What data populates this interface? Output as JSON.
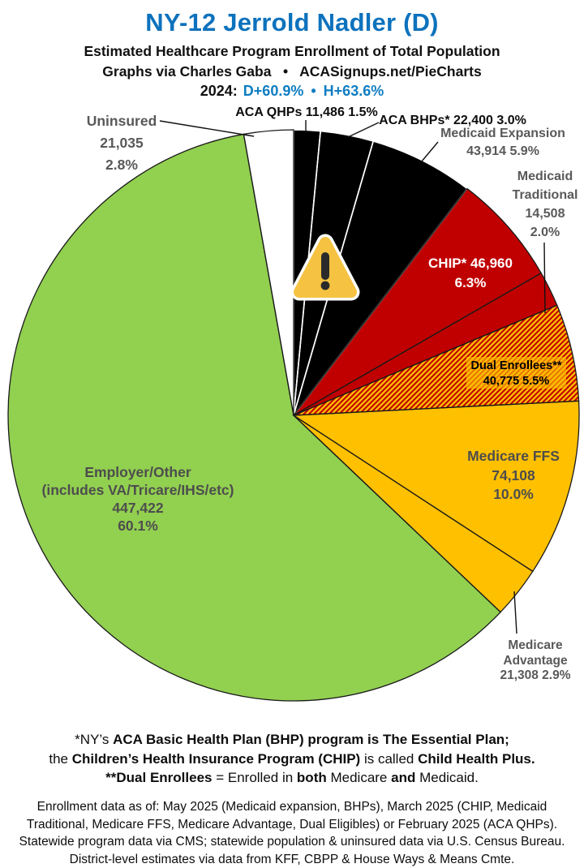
{
  "header": {
    "title": "NY-12 Jerrold Nadler (D)",
    "title_color": "#0d72bd",
    "subtitle1": "Estimated Healthcare Program Enrollment of Total Population",
    "subtitle2": "Graphs via Charles Gaba   •   ACASignups.net/PieCharts",
    "year_label": "2024:",
    "dem_stat": "D+60.9%",
    "sep": "•",
    "house_stat": "H+63.6%",
    "stat_color": "#0f7dc2"
  },
  "chart_data": {
    "type": "pie",
    "title": "Estimated Healthcare Program Enrollment of Total Population",
    "start_angle_deg": 0,
    "direction": "clockwise",
    "legend_position": "callout-labels",
    "slices": [
      {
        "name": "ACA QHPs",
        "value": 11486,
        "pct": 1.5,
        "color": "#000000",
        "stroke": "#ffffff"
      },
      {
        "name": "ACA BHPs*",
        "value": 22400,
        "pct": 3.0,
        "color": "#000000",
        "stroke": "#ffffff"
      },
      {
        "name": "Medicaid Expansion",
        "value": 43914,
        "pct": 5.9,
        "color": "#000000",
        "stroke": "#ffffff"
      },
      {
        "name": "CHIP*",
        "value": 46960,
        "pct": 6.3,
        "color": "#c00000",
        "stroke": "#1a1a1a"
      },
      {
        "name": "Medicaid Traditional",
        "value": 14508,
        "pct": 2.0,
        "color": "#c00000",
        "stroke": "#1a1a1a"
      },
      {
        "name": "Dual Enrollees**",
        "value": 40775,
        "pct": 5.5,
        "color": "#ffc000",
        "pattern": "red-hatch",
        "stroke": "#1a1a1a"
      },
      {
        "name": "Medicare FFS",
        "value": 74108,
        "pct": 10.0,
        "color": "#ffc000",
        "stroke": "#1a1a1a"
      },
      {
        "name": "Medicare Advantage",
        "value": 21308,
        "pct": 2.9,
        "color": "#ffc000",
        "stroke": "#1a1a1a"
      },
      {
        "name": "Employer/Other (includes VA/Tricare/IHS/etc)",
        "value": 447422,
        "pct": 60.1,
        "color": "#92d050",
        "stroke": "#1a1a1a"
      },
      {
        "name": "Uninsured",
        "value": 21035,
        "pct": 2.8,
        "color": "#ffffff",
        "stroke": "#1a1a1a"
      }
    ],
    "hatch_colors": {
      "base": "#ffc000",
      "stripe": "#c00000"
    }
  },
  "labels": {
    "uninsured": "Uninsured\n21,035\n2.8%",
    "aca_qhps": "ACA QHPs 11,486 1.5%",
    "aca_bhps": "ACA BHPs* 22,400 3.0%",
    "medicaid_expansion": "Medicaid Expansion\n43,914 5.9%",
    "medicaid_traditional": "Medicaid\nTraditional\n14,508\n2.0%",
    "chip": "CHIP* 46,960\n6.3%",
    "dual": "Dual Enrollees**\n40,775 5.5%",
    "medicare_ffs": "Medicare FFS\n74,108\n10.0%",
    "medicare_advantage": "Medicare\nAdvantage\n21,308 2.9%",
    "employer": "Employer/Other\n(includes VA/Tricare/IHS/etc)\n447,422\n60.1%"
  },
  "icons": {
    "warning": "warning-triangle"
  },
  "footnotes": {
    "lines": [
      [
        {
          "t": "*NY’s ",
          "b": false
        },
        {
          "t": "ACA Basic Health Plan (BHP) program is The Essential Plan;",
          "b": true
        }
      ],
      [
        {
          "t": "the ",
          "b": false
        },
        {
          "t": "Children’s Health Insurance Program (CHIP)",
          "b": true
        },
        {
          "t": " is called ",
          "b": false
        },
        {
          "t": "Child Health Plus.",
          "b": true
        }
      ],
      [
        {
          "t": "**Dual Enrollees",
          "b": true
        },
        {
          "t": " = Enrolled in ",
          "b": false
        },
        {
          "t": "both",
          "b": true
        },
        {
          "t": " Medicare ",
          "b": false
        },
        {
          "t": "and",
          "b": true
        },
        {
          "t": " Medicaid.",
          "b": false
        }
      ]
    ]
  },
  "source_block": {
    "lines": [
      "Enrollment data as of: May 2025 (Medicaid expansion, BHPs), March 2025 (CHIP, Medicaid",
      "Traditional, Medicare FFS, Medicare Advantage, Dual Eligibles) or February 2025 (ACA QHPs).",
      "Statewide program data via CMS; statewide population & uninsured data via U.S. Census Bureau.",
      "District-level estimates via data from KFF, CBPP & House Ways & Means Cmte."
    ]
  }
}
